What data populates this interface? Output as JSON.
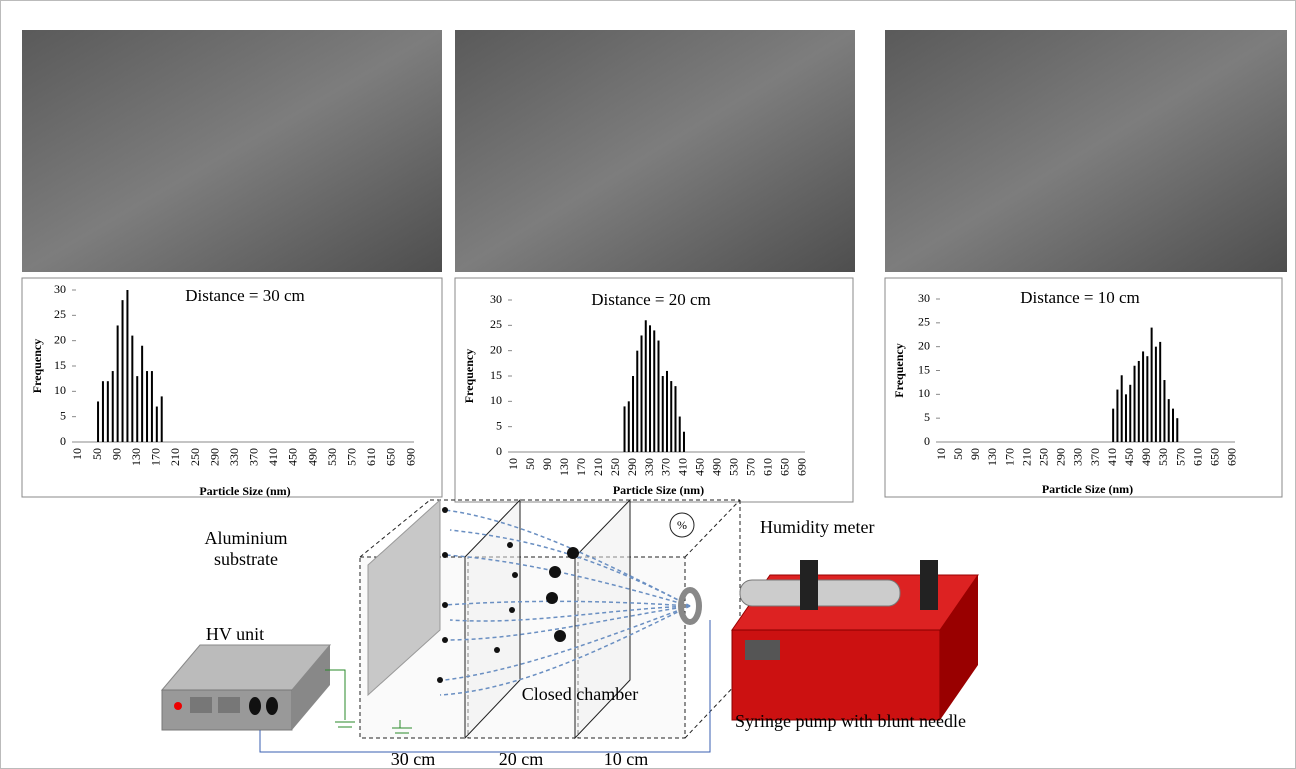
{
  "chart_data": [
    {
      "type": "bar",
      "title": "Distance = 30 cm",
      "ylabel": "Frequency",
      "xlabel": "Particle Size (nm)",
      "color": "#000000",
      "ylim": [
        0,
        30
      ],
      "yticks": [
        0,
        5,
        10,
        15,
        20,
        25,
        30
      ],
      "categories": [
        "10",
        null,
        null,
        null,
        "50",
        null,
        null,
        null,
        "90",
        null,
        null,
        null,
        "130",
        null,
        null,
        null,
        "170",
        null,
        null,
        null,
        "210",
        null,
        null,
        null,
        "250",
        null,
        null,
        null,
        "290",
        null,
        null,
        null,
        "330",
        null,
        null,
        null,
        "370",
        null,
        null,
        null,
        "410",
        null,
        null,
        null,
        "450",
        null,
        null,
        null,
        "490",
        null,
        null,
        null,
        "530",
        null,
        null,
        null,
        "570",
        null,
        null,
        null,
        "610",
        null,
        null,
        null,
        "650",
        null,
        null,
        null,
        "690"
      ],
      "values": [
        0,
        0,
        0,
        0,
        8,
        12,
        12,
        14,
        23,
        28,
        30,
        21,
        13,
        19,
        14,
        14,
        7,
        9,
        0,
        0,
        0,
        0,
        0,
        0,
        0,
        0,
        0,
        0,
        0,
        0,
        0,
        0,
        0,
        0,
        0,
        0,
        0,
        0,
        0,
        0,
        0,
        0,
        0,
        0,
        0,
        0,
        0,
        0,
        0,
        0,
        0,
        0,
        0,
        0,
        0,
        0,
        0,
        0,
        0,
        0,
        0,
        0,
        0,
        0,
        0,
        0,
        0,
        0,
        0
      ]
    },
    {
      "type": "bar",
      "title": "Distance = 20 cm",
      "ylabel": "Frequency",
      "xlabel": "Particle Size (nm)",
      "color": "#000000",
      "ylim": [
        0,
        30
      ],
      "yticks": [
        0,
        5,
        10,
        15,
        20,
        25,
        30
      ],
      "categories": [
        "10",
        null,
        null,
        null,
        "50",
        null,
        null,
        null,
        "90",
        null,
        null,
        null,
        "130",
        null,
        null,
        null,
        "170",
        null,
        null,
        null,
        "210",
        null,
        null,
        null,
        "250",
        null,
        null,
        null,
        "290",
        null,
        null,
        null,
        "330",
        null,
        null,
        null,
        "370",
        null,
        null,
        null,
        "410",
        null,
        null,
        null,
        "450",
        null,
        null,
        null,
        "490",
        null,
        null,
        null,
        "530",
        null,
        null,
        null,
        "570",
        null,
        null,
        null,
        "610",
        null,
        null,
        null,
        "650",
        null,
        null,
        null,
        "690"
      ],
      "values": [
        0,
        0,
        0,
        0,
        0,
        0,
        0,
        0,
        0,
        0,
        0,
        0,
        0,
        0,
        0,
        0,
        0,
        0,
        0,
        0,
        0,
        0,
        0,
        0,
        0,
        0,
        9,
        10,
        15,
        20,
        23,
        26,
        25,
        24,
        22,
        15,
        16,
        14,
        13,
        7,
        4,
        0,
        0,
        0,
        0,
        0,
        0,
        0,
        0,
        0,
        0,
        0,
        0,
        0,
        0,
        0,
        0,
        0,
        0,
        0,
        0,
        0,
        0,
        0,
        0,
        0,
        0,
        0,
        0
      ]
    },
    {
      "type": "bar",
      "title": "Distance = 10 cm",
      "ylabel": "Frequency",
      "xlabel": "Particle Size (nm)",
      "color": "#000000",
      "ylim": [
        0,
        30
      ],
      "yticks": [
        0,
        5,
        10,
        15,
        20,
        25,
        30
      ],
      "categories": [
        "10",
        null,
        null,
        null,
        "50",
        null,
        null,
        null,
        "90",
        null,
        null,
        null,
        "130",
        null,
        null,
        null,
        "170",
        null,
        null,
        null,
        "210",
        null,
        null,
        null,
        "250",
        null,
        null,
        null,
        "290",
        null,
        null,
        null,
        "330",
        null,
        null,
        null,
        "370",
        null,
        null,
        null,
        "410",
        null,
        null,
        null,
        "450",
        null,
        null,
        null,
        "490",
        null,
        null,
        null,
        "530",
        null,
        null,
        null,
        "570",
        null,
        null,
        null,
        "610",
        null,
        null,
        null,
        "650",
        null,
        null,
        null,
        "690"
      ],
      "values": [
        0,
        0,
        0,
        0,
        0,
        0,
        0,
        0,
        0,
        0,
        0,
        0,
        0,
        0,
        0,
        0,
        0,
        0,
        0,
        0,
        0,
        0,
        0,
        0,
        0,
        0,
        0,
        0,
        0,
        0,
        0,
        0,
        0,
        0,
        0,
        0,
        0,
        0,
        0,
        0,
        7,
        11,
        14,
        10,
        12,
        16,
        17,
        19,
        18,
        24,
        20,
        21,
        13,
        9,
        7,
        5,
        0,
        0,
        0,
        0,
        0,
        0,
        0,
        0,
        0,
        0,
        0,
        0,
        0
      ]
    }
  ],
  "diagram": {
    "substrate": [
      "Aluminium",
      "substrate"
    ],
    "hv_unit": "HV unit",
    "humidity": "Humidity meter",
    "humidity_icon": "%",
    "chamber": "Closed chamber",
    "pump": "Syringe pump with blunt needle",
    "distances": [
      "30 cm",
      "20 cm",
      "10 cm"
    ]
  }
}
